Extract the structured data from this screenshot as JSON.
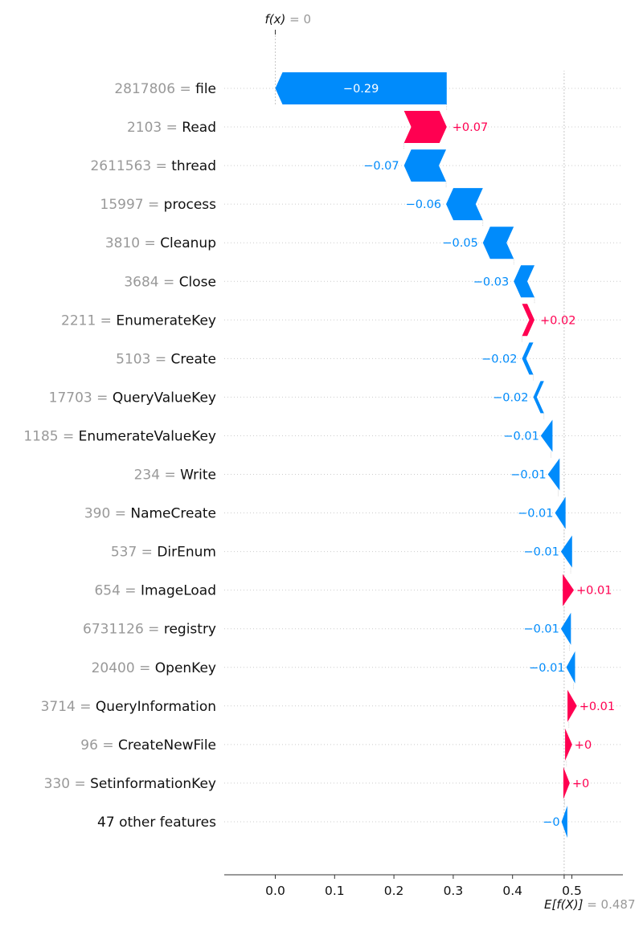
{
  "chart_data": {
    "type": "waterfall",
    "fx_label": "f(x)",
    "fx_value": "= 0",
    "base_label": "E[f(X)]",
    "base_value": "= 0.487",
    "base_value_num": 0.487,
    "final_value_num": 0,
    "xlim": [
      -0.085,
      0.585
    ],
    "xticks": [
      {
        "value": 0.0,
        "label": "0.0"
      },
      {
        "value": 0.1,
        "label": "0.1"
      },
      {
        "value": 0.2,
        "label": "0.2"
      },
      {
        "value": 0.3,
        "label": "0.3"
      },
      {
        "value": 0.4,
        "label": "0.4"
      },
      {
        "value": 0.5,
        "label": "0.5"
      }
    ],
    "colors": {
      "positive": "#ff0051",
      "negative": "#008bfb",
      "value_text": "#999999",
      "grid": "#cccccc"
    },
    "features": [
      {
        "value": "2817806",
        "eq": "=",
        "name": "file",
        "start": 0.289,
        "end": 0.0,
        "label": "−0.29"
      },
      {
        "value": "2103",
        "eq": "=",
        "name": "Read",
        "start": 0.217,
        "end": 0.289,
        "label": "+0.07"
      },
      {
        "value": "2611563",
        "eq": "=",
        "name": "thread",
        "start": 0.288,
        "end": 0.217,
        "label": "−0.07"
      },
      {
        "value": "15997",
        "eq": "=",
        "name": "process",
        "start": 0.35,
        "end": 0.288,
        "label": "−0.06"
      },
      {
        "value": "3810",
        "eq": "=",
        "name": "Cleanup",
        "start": 0.402,
        "end": 0.35,
        "label": "−0.05"
      },
      {
        "value": "3684",
        "eq": "=",
        "name": "Close",
        "start": 0.437,
        "end": 0.402,
        "label": "−0.03"
      },
      {
        "value": "2211",
        "eq": "=",
        "name": "EnumerateKey",
        "start": 0.416,
        "end": 0.437,
        "label": "+0.02"
      },
      {
        "value": "5103",
        "eq": "=",
        "name": "Create",
        "start": 0.435,
        "end": 0.416,
        "label": "−0.02"
      },
      {
        "value": "17703",
        "eq": "=",
        "name": "QueryValueKey",
        "start": 0.453,
        "end": 0.435,
        "label": "−0.02"
      },
      {
        "value": "1185",
        "eq": "=",
        "name": "EnumerateValueKey",
        "start": 0.465,
        "end": 0.453,
        "label": "−0.01"
      },
      {
        "value": "234",
        "eq": "=",
        "name": "Write",
        "start": 0.477,
        "end": 0.465,
        "label": "−0.01"
      },
      {
        "value": "390",
        "eq": "=",
        "name": "NameCreate",
        "start": 0.487,
        "end": 0.477,
        "label": "−0.01"
      },
      {
        "value": "537",
        "eq": "=",
        "name": "DirEnum",
        "start": 0.498,
        "end": 0.487,
        "label": "−0.01"
      },
      {
        "value": "654",
        "eq": "=",
        "name": "ImageLoad",
        "start": 0.487,
        "end": 0.498,
        "label": "+0.01"
      },
      {
        "value": "6731126",
        "eq": "=",
        "name": "registry",
        "start": 0.496,
        "end": 0.487,
        "label": "−0.01"
      },
      {
        "value": "20400",
        "eq": "=",
        "name": "OpenKey",
        "start": 0.503,
        "end": 0.496,
        "label": "−0.01"
      },
      {
        "value": "3714",
        "eq": "=",
        "name": "QueryInformation",
        "start": 0.495,
        "end": 0.503,
        "label": "+0.01"
      },
      {
        "value": "96",
        "eq": "=",
        "name": "CreateNewFile",
        "start": 0.491,
        "end": 0.495,
        "label": "+0"
      },
      {
        "value": "330",
        "eq": "=",
        "name": "SetinformationKey",
        "start": 0.488,
        "end": 0.491,
        "label": "+0"
      },
      {
        "value": "",
        "eq": "",
        "name": "47 other features",
        "start": 0.49,
        "end": 0.488,
        "label": "−0"
      }
    ]
  }
}
